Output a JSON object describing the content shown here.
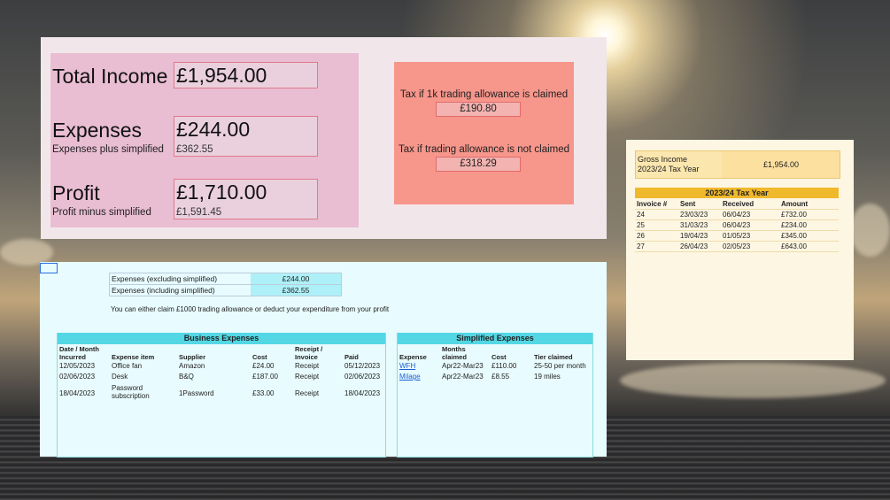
{
  "summary": {
    "total_income_label": "Total Income",
    "total_income_value": "£1,954.00",
    "expenses_label": "Expenses",
    "expenses_value": "£244.00",
    "expenses_sub_label": "Expenses plus simplified",
    "expenses_sub_value": "£362.55",
    "profit_label": "Profit",
    "profit_value": "£1,710.00",
    "profit_sub_label": "Profit minus simplified",
    "profit_sub_value": "£1,591.45"
  },
  "tax": {
    "claimed_label": "Tax if 1k trading allowance is claimed",
    "claimed_value": "£190.80",
    "not_claimed_label": "Tax if trading allowance is not claimed",
    "not_claimed_value": "£318.29"
  },
  "invoices": {
    "gross_label_line1": "Gross Income",
    "gross_label_line2": "2023/24 Tax Year",
    "gross_value": "£1,954.00",
    "table_title": "2023/24 Tax Year",
    "columns": [
      "Invoice #",
      "Sent",
      "Received",
      "Amount"
    ],
    "rows": [
      [
        "24",
        "23/03/23",
        "06/04/23",
        "£732.00"
      ],
      [
        "25",
        "31/03/23",
        "06/04/23",
        "£234.00"
      ],
      [
        "26",
        "19/04/23",
        "01/05/23",
        "£345.00"
      ],
      [
        "27",
        "26/04/23",
        "02/05/23",
        "£643.00"
      ]
    ]
  },
  "expenses_summary": {
    "excl_label": "Expenses (excluding simplified)",
    "excl_value": "£244.00",
    "incl_label": "Expenses (including simplified)",
    "incl_value": "£362.55",
    "note": "You can either claim £1000 trading allowance or deduct your expenditure from your profit"
  },
  "business_expenses": {
    "title": "Business Expenses",
    "columns": [
      "Date / Month Incurred",
      "Expense item",
      "Supplier",
      "Cost",
      "Receipt / Invoice",
      "Paid"
    ],
    "rows": [
      [
        "12/05/2023",
        "Office fan",
        "Amazon",
        "£24.00",
        "Receipt",
        "05/12/2023"
      ],
      [
        "02/06/2023",
        "Desk",
        "B&Q",
        "£187.00",
        "Receipt",
        "02/06/2023"
      ],
      [
        "18/04/2023",
        "Password subscription",
        "1Password",
        "£33.00",
        "Receipt",
        "18/04/2023"
      ]
    ]
  },
  "simplified_expenses": {
    "title": "Simplified Expenses",
    "columns": [
      "Expense",
      "Months claimed",
      "Cost",
      "Tier claimed"
    ],
    "rows": [
      [
        "WFH",
        "Apr22-Mar23",
        "£110.00",
        "25-50 per month"
      ],
      [
        "Milage",
        "Apr22-Mar23",
        "£8.55",
        "19 miles"
      ]
    ]
  },
  "colors": {
    "pink_panel": "#e9bdd2",
    "salmon_panel": "#f7968b",
    "cyan_header": "#54d7e4",
    "gold_header": "#f0b92c"
  }
}
